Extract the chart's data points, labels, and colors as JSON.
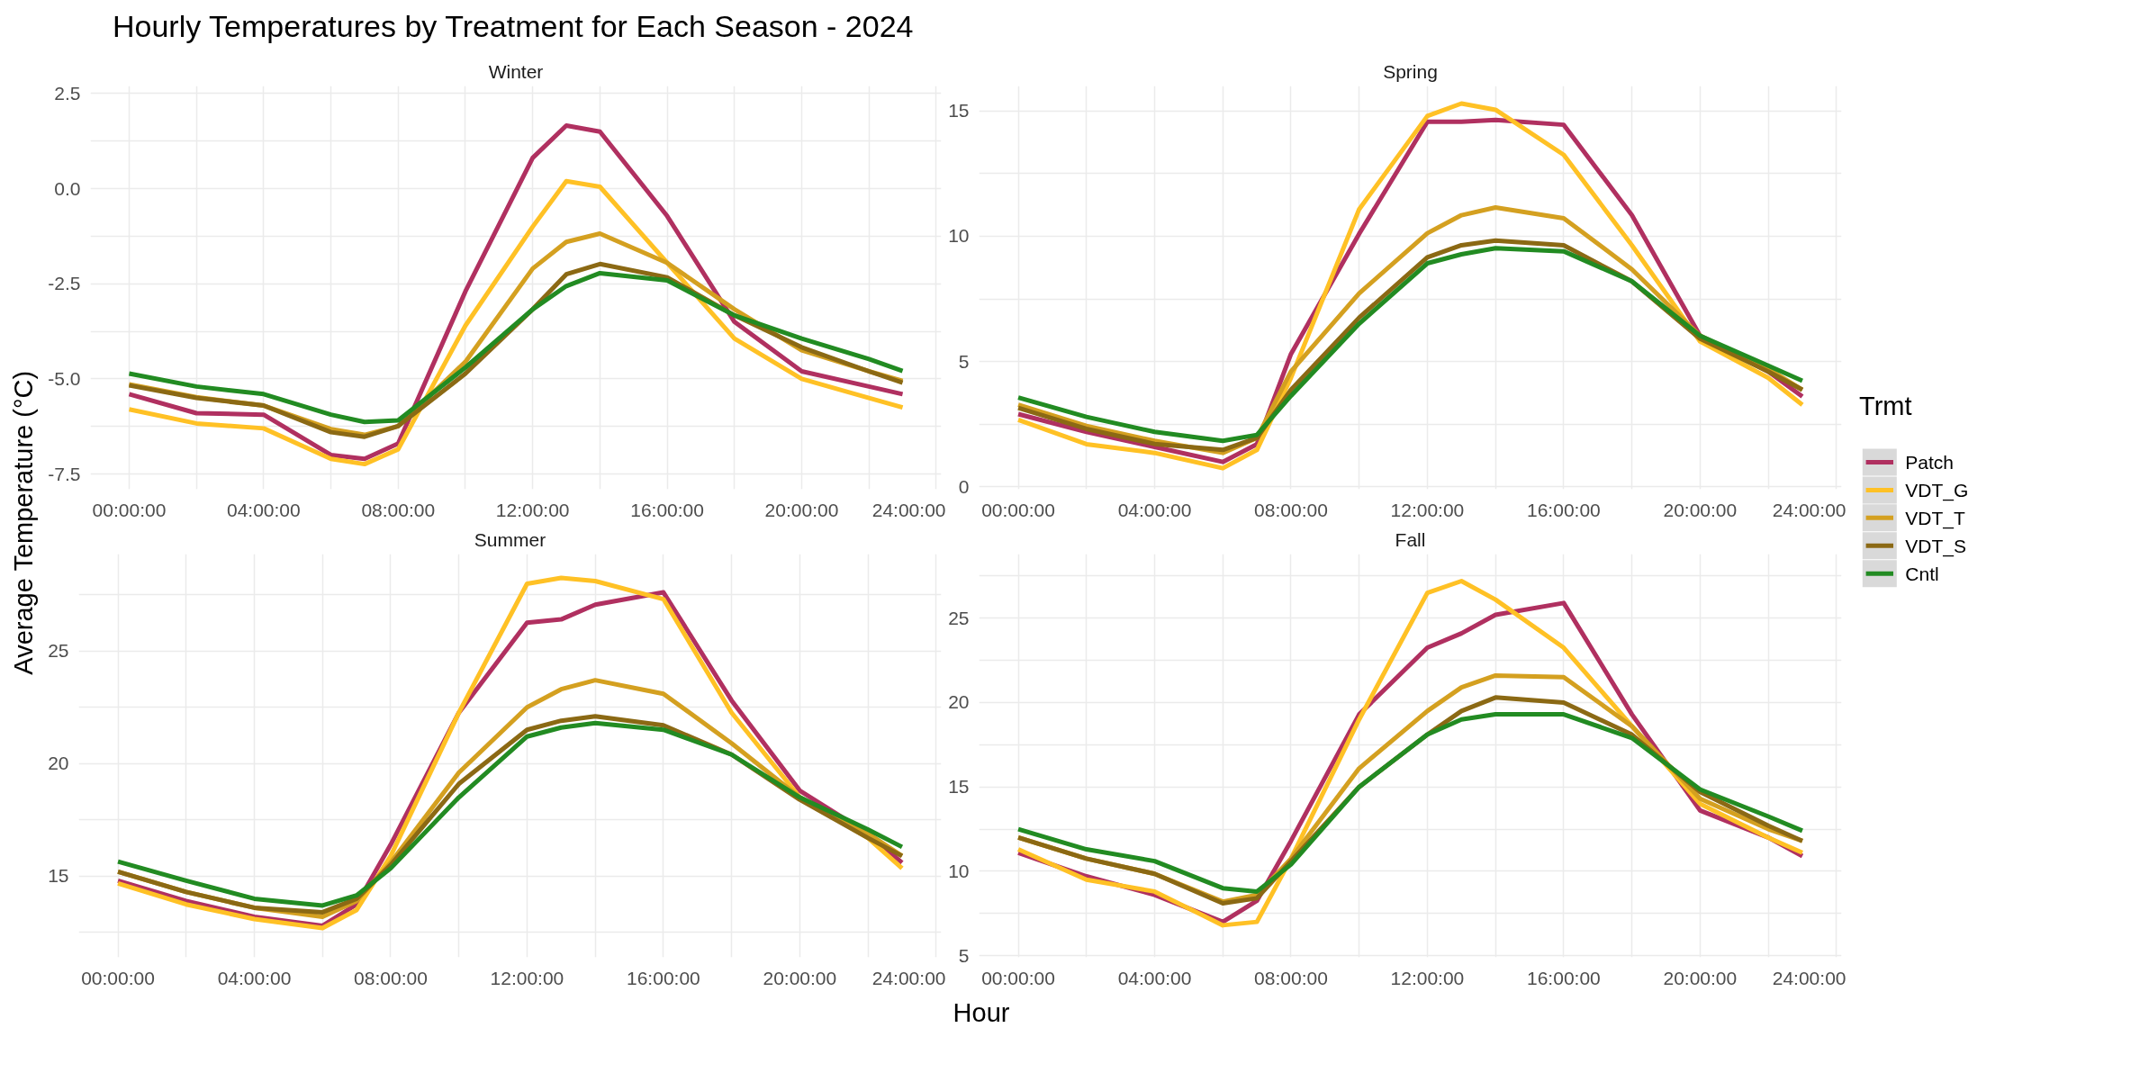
{
  "chart_data": [
    {
      "type": "line",
      "title": "Hourly Temperatures by Treatment for Each Season - 2024",
      "subtitle": "Winter",
      "ylabel": "Average Temperature (°C)",
      "legend": "right",
      "legend_title": "Trmt",
      "grid": true,
      "line_style": "solid",
      "x": [
        0,
        2,
        4,
        6,
        7,
        8,
        10,
        12,
        13,
        14,
        16,
        18,
        20,
        22,
        23
      ],
      "xlim": [
        -1.15,
        24.15
      ],
      "xticks": [
        {
          "value": 0,
          "label": "00:00:00"
        },
        {
          "value": 2,
          "label": null
        },
        {
          "value": 4,
          "label": "04:00:00"
        },
        {
          "value": 6,
          "label": null
        },
        {
          "value": 8,
          "label": "08:00:00"
        },
        {
          "value": 10,
          "label": null
        },
        {
          "value": 12,
          "label": "12:00:00"
        },
        {
          "value": 14,
          "label": null
        },
        {
          "value": 16,
          "label": "16:00:00"
        },
        {
          "value": 18,
          "label": null
        },
        {
          "value": 20,
          "label": "20:00:00"
        },
        {
          "value": 22,
          "label": null
        },
        {
          "value": 24,
          "label": "24:00:00"
        }
      ],
      "ylim": [
        -7.9,
        2.7
      ],
      "yticks": [
        {
          "value": -7.5,
          "label": "-7.5"
        },
        {
          "value": -6.25,
          "label": null
        },
        {
          "value": -5,
          "label": "-5.0"
        },
        {
          "value": -3.75,
          "label": null
        },
        {
          "value": -2.5,
          "label": "-2.5"
        },
        {
          "value": -1.25,
          "label": null
        },
        {
          "value": 0,
          "label": "0.0"
        },
        {
          "value": 1.25,
          "label": null
        },
        {
          "value": 2.5,
          "label": "2.5"
        }
      ],
      "series": [
        {
          "name": "Patch",
          "color": "#b03060",
          "values": [
            -5.4,
            -5.9,
            -5.94,
            -7.0,
            -7.1,
            -6.7,
            -2.7,
            0.81,
            1.66,
            1.5,
            -0.72,
            -3.5,
            -4.8,
            -5.2,
            -5.4
          ]
        },
        {
          "name": "VDT_G",
          "color": "#ffc125",
          "values": [
            -5.8,
            -6.17,
            -6.3,
            -7.1,
            -7.24,
            -6.85,
            -3.6,
            -1.0,
            0.2,
            0.05,
            -1.95,
            -3.94,
            -5.0,
            -5.5,
            -5.75
          ]
        },
        {
          "name": "VDT_T",
          "color": "#d4a020",
          "values": [
            -5.14,
            -5.48,
            -5.7,
            -6.32,
            -6.47,
            -6.24,
            -4.55,
            -2.1,
            -1.4,
            -1.18,
            -1.95,
            -3.17,
            -4.25,
            -4.8,
            -5.05
          ]
        },
        {
          "name": "VDT_S",
          "color": "#8b6914",
          "values": [
            -5.17,
            -5.5,
            -5.7,
            -6.4,
            -6.52,
            -6.24,
            -4.86,
            -3.17,
            -2.25,
            -1.98,
            -2.33,
            -3.33,
            -4.17,
            -4.8,
            -5.1
          ]
        },
        {
          "name": "Cntl",
          "color": "#228b22",
          "values": [
            -4.86,
            -5.2,
            -5.4,
            -5.94,
            -6.13,
            -6.09,
            -4.7,
            -3.17,
            -2.56,
            -2.22,
            -2.41,
            -3.33,
            -3.94,
            -4.48,
            -4.79
          ]
        }
      ]
    },
    {
      "type": "line",
      "subtitle": "Spring",
      "grid": true,
      "line_style": "solid",
      "x": [
        0,
        2,
        4,
        6,
        7,
        8,
        10,
        12,
        13,
        14,
        16,
        18,
        20,
        22,
        23
      ],
      "xlim": [
        -1.15,
        24.15
      ],
      "xticks": [
        {
          "value": 0,
          "label": "00:00:00"
        },
        {
          "value": 2,
          "label": null
        },
        {
          "value": 4,
          "label": "04:00:00"
        },
        {
          "value": 6,
          "label": null
        },
        {
          "value": 8,
          "label": "08:00:00"
        },
        {
          "value": 10,
          "label": null
        },
        {
          "value": 12,
          "label": "12:00:00"
        },
        {
          "value": 14,
          "label": null
        },
        {
          "value": 16,
          "label": "16:00:00"
        },
        {
          "value": 18,
          "label": null
        },
        {
          "value": 20,
          "label": "20:00:00"
        },
        {
          "value": 22,
          "label": null
        },
        {
          "value": 24,
          "label": "24:00:00"
        }
      ],
      "ylim": [
        -0.1,
        16
      ],
      "yticks": [
        0,
        {
          "value": 2.5,
          "label": null
        },
        5,
        {
          "value": 7.5,
          "label": null
        },
        10,
        {
          "value": 12.5,
          "label": null
        },
        15
      ],
      "series": [
        {
          "color": "#b03060",
          "values": [
            2.9,
            2.19,
            1.59,
            0.99,
            1.7,
            5.3,
            10.1,
            14.57,
            14.57,
            14.64,
            14.45,
            10.84,
            6.03,
            4.6,
            3.6
          ]
        },
        {
          "color": "#ffc125",
          "values": [
            2.67,
            1.7,
            1.35,
            0.74,
            1.47,
            4.35,
            11.08,
            14.8,
            15.3,
            15.05,
            13.25,
            9.64,
            5.8,
            4.35,
            3.27
          ]
        },
        {
          "color": "#d4a020",
          "values": [
            3.27,
            2.43,
            1.83,
            1.35,
            1.95,
            4.6,
            7.72,
            10.12,
            10.84,
            11.15,
            10.72,
            8.68,
            6.03,
            4.71,
            3.87
          ]
        },
        {
          "color": "#8b6914",
          "values": [
            3.15,
            2.31,
            1.71,
            1.47,
            1.95,
            3.87,
            6.75,
            9.16,
            9.64,
            9.83,
            9.64,
            8.2,
            5.91,
            4.6,
            3.87
          ]
        },
        {
          "color": "#228b22",
          "values": [
            3.56,
            2.79,
            2.19,
            1.83,
            2.07,
            3.63,
            6.51,
            8.92,
            9.28,
            9.52,
            9.4,
            8.2,
            6.03,
            4.83,
            4.23
          ]
        }
      ]
    },
    {
      "type": "line",
      "subtitle": "Summer",
      "xlabel": "Hour",
      "grid": true,
      "line_style": "solid",
      "x": [
        0,
        2,
        4,
        6,
        7,
        8,
        10,
        12,
        13,
        14,
        16,
        18,
        20,
        22,
        23
      ],
      "xlim": [
        -1.15,
        24.15
      ],
      "xticks": [
        {
          "value": 0,
          "label": "00:00:00"
        },
        {
          "value": 2,
          "label": null
        },
        {
          "value": 4,
          "label": "04:00:00"
        },
        {
          "value": 6,
          "label": null
        },
        {
          "value": 8,
          "label": "08:00:00"
        },
        {
          "value": 10,
          "label": null
        },
        {
          "value": 12,
          "label": "12:00:00"
        },
        {
          "value": 14,
          "label": null
        },
        {
          "value": 16,
          "label": "16:00:00"
        },
        {
          "value": 18,
          "label": null
        },
        {
          "value": 20,
          "label": "20:00:00"
        },
        {
          "value": 22,
          "label": null
        },
        {
          "value": 24,
          "label": "24:00:00"
        }
      ],
      "ylim": [
        11.4,
        29.3
      ],
      "yticks": [
        {
          "value": 12.5,
          "label": null
        },
        15,
        {
          "value": 17.5,
          "label": null
        },
        20,
        {
          "value": 22.5,
          "label": null
        },
        25,
        {
          "value": 27.5,
          "label": null
        }
      ],
      "series": [
        {
          "color": "#b03060",
          "values": [
            14.8,
            13.9,
            13.2,
            12.8,
            13.75,
            16.4,
            22.26,
            26.25,
            26.4,
            27.05,
            27.6,
            22.8,
            18.8,
            16.9,
            15.6
          ]
        },
        {
          "color": "#ffc125",
          "values": [
            14.68,
            13.75,
            13.1,
            12.7,
            13.5,
            15.9,
            22.26,
            27.98,
            28.24,
            28.1,
            27.3,
            22.26,
            18.5,
            16.7,
            15.35
          ]
        },
        {
          "color": "#d4a020",
          "values": [
            15.2,
            14.3,
            13.6,
            13.2,
            13.9,
            15.6,
            19.6,
            22.5,
            23.3,
            23.7,
            23.1,
            20.9,
            18.5,
            16.9,
            15.9
          ]
        },
        {
          "color": "#8b6914",
          "values": [
            15.2,
            14.3,
            13.6,
            13.4,
            14.0,
            15.5,
            19.1,
            21.5,
            21.9,
            22.1,
            21.7,
            20.4,
            18.4,
            16.7,
            15.9
          ]
        },
        {
          "color": "#228b22",
          "values": [
            15.65,
            14.8,
            14.0,
            13.7,
            14.15,
            15.35,
            18.5,
            21.2,
            21.6,
            21.8,
            21.5,
            20.4,
            18.5,
            17.07,
            16.3
          ]
        }
      ]
    },
    {
      "type": "line",
      "subtitle": "Fall",
      "grid": true,
      "line_style": "solid",
      "x": [
        0,
        2,
        4,
        6,
        7,
        8,
        10,
        12,
        13,
        14,
        16,
        18,
        20,
        22,
        23
      ],
      "xlim": [
        -1.15,
        24.15
      ],
      "xticks": [
        {
          "value": 0,
          "label": "00:00:00"
        },
        {
          "value": 2,
          "label": null
        },
        {
          "value": 4,
          "label": "04:00:00"
        },
        {
          "value": 6,
          "label": null
        },
        {
          "value": 8,
          "label": "08:00:00"
        },
        {
          "value": 10,
          "label": null
        },
        {
          "value": 12,
          "label": "12:00:00"
        },
        {
          "value": 14,
          "label": null
        },
        {
          "value": 16,
          "label": "16:00:00"
        },
        {
          "value": 18,
          "label": null
        },
        {
          "value": 20,
          "label": "20:00:00"
        },
        {
          "value": 22,
          "label": null
        },
        {
          "value": 24,
          "label": "24:00:00"
        }
      ],
      "ylim": [
        4.9,
        28.8
      ],
      "yticks": [
        5,
        {
          "value": 7.5,
          "label": null
        },
        10,
        {
          "value": 12.5,
          "label": null
        },
        15,
        {
          "value": 17.5,
          "label": null
        },
        20,
        {
          "value": 22.5,
          "label": null
        },
        25,
        {
          "value": 27.5,
          "label": null
        }
      ],
      "series": [
        {
          "color": "#b03060",
          "values": [
            11.1,
            9.7,
            8.6,
            7.0,
            8.25,
            11.8,
            19.3,
            23.25,
            24.1,
            25.2,
            25.9,
            19.3,
            13.6,
            12.0,
            10.9
          ]
        },
        {
          "color": "#ffc125",
          "values": [
            11.3,
            9.5,
            8.8,
            6.8,
            7.0,
            10.75,
            19.0,
            26.5,
            27.2,
            26.1,
            23.25,
            18.6,
            14.0,
            12.0,
            11.1
          ]
        },
        {
          "color": "#d4a020",
          "values": [
            12.0,
            10.75,
            9.85,
            8.2,
            8.6,
            10.75,
            16.1,
            19.5,
            20.9,
            21.6,
            21.5,
            18.6,
            14.3,
            12.5,
            11.8
          ]
        },
        {
          "color": "#8b6914",
          "values": [
            12.0,
            10.75,
            9.85,
            8.1,
            8.4,
            10.6,
            15.0,
            18.1,
            19.5,
            20.3,
            20.0,
            18.1,
            14.7,
            12.7,
            11.8
          ]
        },
        {
          "color": "#228b22",
          "values": [
            12.5,
            11.3,
            10.6,
            9.0,
            8.8,
            10.4,
            15.0,
            18.1,
            19.0,
            19.3,
            19.3,
            17.9,
            14.85,
            13.25,
            12.4
          ]
        }
      ]
    }
  ]
}
